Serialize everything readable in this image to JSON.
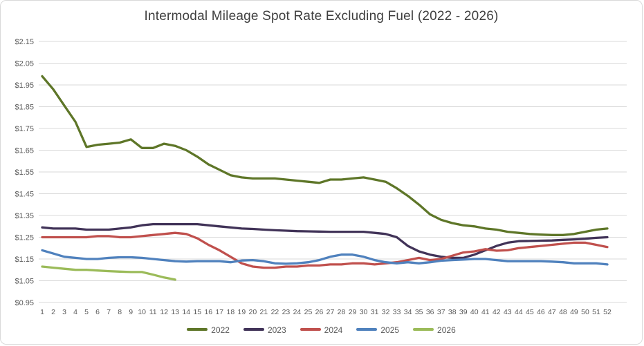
{
  "title": "Intermodal Mileage Spot Rate Excluding Fuel (2022 - 2026)",
  "colors": {
    "gridline": "#d9d9d9",
    "axis_text": "#595959",
    "title_text": "#3f3f3f",
    "background": "#ffffff"
  },
  "chart_data": {
    "type": "line",
    "title": "Intermodal Mileage Spot Rate Excluding Fuel (2022 - 2026)",
    "xlabel": "",
    "ylabel": "",
    "x": [
      1,
      2,
      3,
      4,
      5,
      6,
      7,
      8,
      9,
      10,
      11,
      12,
      13,
      14,
      15,
      16,
      17,
      18,
      19,
      20,
      21,
      22,
      23,
      24,
      25,
      26,
      27,
      28,
      29,
      30,
      31,
      32,
      33,
      34,
      35,
      36,
      37,
      38,
      39,
      40,
      41,
      42,
      43,
      44,
      45,
      46,
      47,
      48,
      49,
      50,
      51,
      52
    ],
    "y_ticks": [
      "$2.15",
      "$2.05",
      "$1.95",
      "$1.85",
      "$1.75",
      "$1.65",
      "$1.55",
      "$1.45",
      "$1.35",
      "$1.25",
      "$1.15",
      "$1.05",
      "$0.95"
    ],
    "ylim": [
      0.95,
      2.15
    ],
    "y_step": 0.1,
    "grid": "horizontal",
    "legend_position": "bottom",
    "series": [
      {
        "name": "2022",
        "color": "#5e7628",
        "values": [
          1.99,
          1.93,
          1.855,
          1.78,
          1.665,
          1.675,
          1.68,
          1.685,
          1.7,
          1.66,
          1.66,
          1.68,
          1.67,
          1.65,
          1.62,
          1.585,
          1.56,
          1.535,
          1.525,
          1.52,
          1.52,
          1.52,
          1.515,
          1.51,
          1.505,
          1.5,
          1.515,
          1.515,
          1.52,
          1.525,
          1.515,
          1.505,
          1.475,
          1.44,
          1.4,
          1.355,
          1.33,
          1.315,
          1.305,
          1.3,
          1.29,
          1.285,
          1.275,
          1.27,
          1.265,
          1.262,
          1.26,
          1.26,
          1.265,
          1.275,
          1.285,
          1.29
        ]
      },
      {
        "name": "2023",
        "color": "#413358",
        "values": [
          1.295,
          1.29,
          1.29,
          1.29,
          1.285,
          1.285,
          1.285,
          1.29,
          1.295,
          1.305,
          1.31,
          1.31,
          1.31,
          1.31,
          1.31,
          1.305,
          1.3,
          1.295,
          1.29,
          1.288,
          1.285,
          1.282,
          1.28,
          1.278,
          1.277,
          1.276,
          1.275,
          1.275,
          1.275,
          1.275,
          1.27,
          1.265,
          1.25,
          1.21,
          1.185,
          1.17,
          1.16,
          1.155,
          1.155,
          1.17,
          1.19,
          1.21,
          1.225,
          1.232,
          1.233,
          1.234,
          1.235,
          1.238,
          1.24,
          1.243,
          1.247,
          1.25
        ]
      },
      {
        "name": "2024",
        "color": "#c0504d",
        "values": [
          1.25,
          1.25,
          1.25,
          1.25,
          1.25,
          1.255,
          1.255,
          1.25,
          1.25,
          1.255,
          1.26,
          1.265,
          1.27,
          1.265,
          1.245,
          1.215,
          1.19,
          1.16,
          1.13,
          1.115,
          1.11,
          1.11,
          1.115,
          1.115,
          1.12,
          1.12,
          1.125,
          1.125,
          1.13,
          1.13,
          1.125,
          1.13,
          1.135,
          1.145,
          1.155,
          1.145,
          1.15,
          1.165,
          1.18,
          1.185,
          1.195,
          1.188,
          1.19,
          1.2,
          1.205,
          1.21,
          1.215,
          1.22,
          1.225,
          1.225,
          1.215,
          1.205
        ]
      },
      {
        "name": "2025",
        "color": "#4f81bd",
        "values": [
          1.19,
          1.175,
          1.16,
          1.155,
          1.15,
          1.15,
          1.155,
          1.158,
          1.158,
          1.155,
          1.15,
          1.145,
          1.14,
          1.138,
          1.14,
          1.14,
          1.14,
          1.135,
          1.143,
          1.145,
          1.14,
          1.13,
          1.128,
          1.13,
          1.135,
          1.145,
          1.16,
          1.17,
          1.17,
          1.16,
          1.145,
          1.135,
          1.13,
          1.135,
          1.13,
          1.135,
          1.142,
          1.145,
          1.147,
          1.15,
          1.15,
          1.145,
          1.14,
          1.14,
          1.14,
          1.14,
          1.138,
          1.135,
          1.13,
          1.13,
          1.13,
          1.125
        ]
      },
      {
        "name": "2026",
        "color": "#9bbb59",
        "values": [
          1.115,
          1.11,
          1.105,
          1.1,
          1.1,
          1.097,
          1.094,
          1.092,
          1.09,
          1.09,
          1.078,
          1.065,
          1.055,
          null,
          null,
          null,
          null,
          null,
          null,
          null,
          null,
          null,
          null,
          null,
          null,
          null,
          null,
          null,
          null,
          null,
          null,
          null,
          null,
          null,
          null,
          null,
          null,
          null,
          null,
          null,
          null,
          null,
          null,
          null,
          null,
          null,
          null,
          null,
          null,
          null,
          null,
          null
        ]
      }
    ]
  }
}
